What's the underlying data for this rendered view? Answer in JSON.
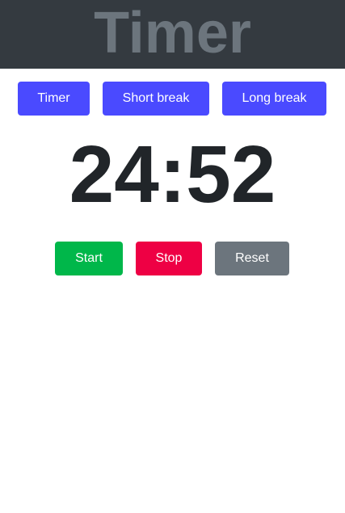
{
  "header": {
    "title": "Timer"
  },
  "modes": {
    "timer_label": "Timer",
    "short_break_label": "Short break",
    "long_break_label": "Long break"
  },
  "display": {
    "time": "24:52"
  },
  "controls": {
    "start_label": "Start",
    "stop_label": "Stop",
    "reset_label": "Reset"
  },
  "colors": {
    "header_bg": "#343a40",
    "header_text": "#6c757d",
    "mode_button": "#4a4aff",
    "start": "#00b74a",
    "stop": "#ee0044",
    "reset": "#6c757d",
    "time_text": "#212529"
  }
}
